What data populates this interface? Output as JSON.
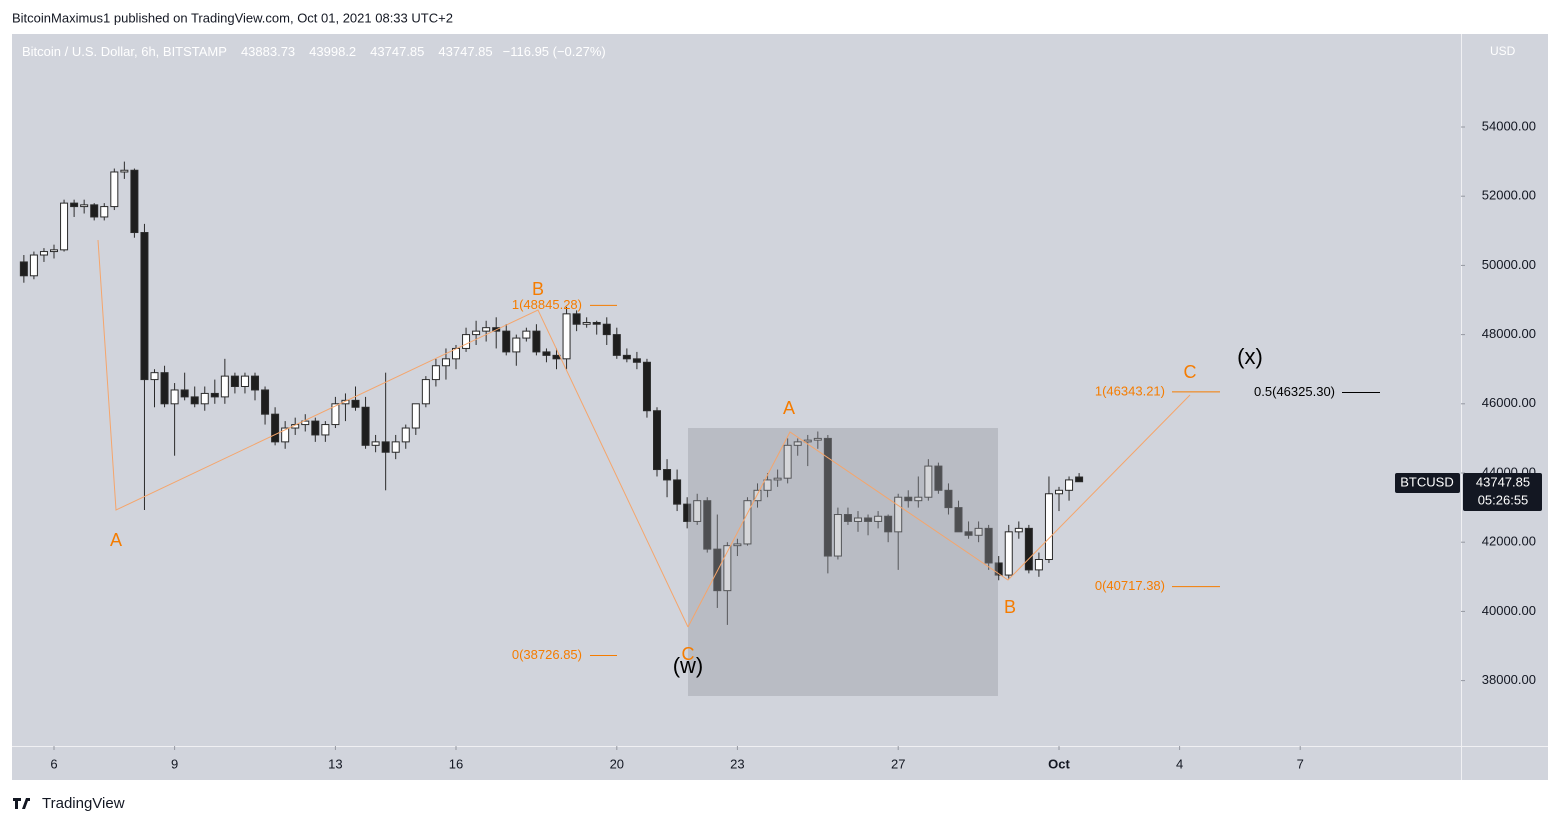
{
  "publisher": "BitcoinMaximus1 published on TradingView.com, Oct 01, 2021 08:33 UTC+2",
  "footer": "TradingView",
  "chart_data": {
    "type": "candlestick",
    "title": "Bitcoin / U.S. Dollar, 6h, BITSTAMP",
    "change": "−116.95 (−0.27%)",
    "symbol": "BTCUSD",
    "countdown": "05:26:55",
    "currency": "USD",
    "up_color": "#ffffff",
    "down_color": "#1e1e1e",
    "edge_color": "#2a2a2a",
    "x": [
      5.25,
      5.5,
      5.75,
      6,
      6.25,
      6.5,
      6.75,
      7,
      7.25,
      7.5,
      7.75,
      8,
      8.25,
      8.5,
      8.75,
      9,
      9.25,
      9.5,
      9.75,
      10,
      10.25,
      10.5,
      10.75,
      11,
      11.25,
      11.5,
      11.75,
      12,
      12.25,
      12.5,
      12.75,
      13,
      13.25,
      13.5,
      13.75,
      14,
      14.25,
      14.5,
      14.75,
      15,
      15.25,
      15.5,
      15.75,
      16,
      16.25,
      16.5,
      16.75,
      17,
      17.25,
      17.5,
      17.75,
      18,
      18.25,
      18.5,
      18.75,
      19,
      19.25,
      19.5,
      19.75,
      20,
      20.25,
      20.5,
      20.75,
      21,
      21.25,
      21.5,
      21.75,
      22,
      22.25,
      22.5,
      22.75,
      23,
      23.25,
      23.5,
      23.75,
      24,
      24.25,
      24.5,
      24.75,
      25,
      25.25,
      25.5,
      25.75,
      26,
      26.25,
      26.5,
      26.75,
      27,
      27.25,
      27.5,
      27.75,
      28,
      28.25,
      28.5,
      28.75,
      29,
      29.25,
      29.5,
      29.75,
      30,
      30.25,
      30.5,
      30.75,
      31,
      31.25,
      31.5
    ],
    "candles": [
      [
        50100,
        50300,
        49500,
        49700
      ],
      [
        49700,
        50400,
        49600,
        50300
      ],
      [
        50300,
        50500,
        50100,
        50400
      ],
      [
        50400,
        50600,
        50200,
        50450
      ],
      [
        50450,
        51900,
        50400,
        51800
      ],
      [
        51800,
        51900,
        51400,
        51700
      ],
      [
        51700,
        51900,
        51500,
        51750
      ],
      [
        51750,
        51800,
        51300,
        51400
      ],
      [
        51400,
        51800,
        51300,
        51700
      ],
      [
        51700,
        52800,
        51600,
        52700
      ],
      [
        52700,
        53000,
        52500,
        52750
      ],
      [
        52750,
        52800,
        50800,
        50950
      ],
      [
        50950,
        51200,
        42930,
        46700
      ],
      [
        46700,
        47000,
        45900,
        46900
      ],
      [
        46900,
        47100,
        45900,
        46000
      ],
      [
        46000,
        46600,
        44500,
        46400
      ],
      [
        46400,
        46900,
        46100,
        46200
      ],
      [
        46200,
        46500,
        45900,
        46000
      ],
      [
        46000,
        46500,
        45800,
        46300
      ],
      [
        46300,
        46700,
        46000,
        46200
      ],
      [
        46200,
        47300,
        46000,
        46800
      ],
      [
        46800,
        46900,
        46300,
        46500
      ],
      [
        46500,
        46900,
        46300,
        46800
      ],
      [
        46800,
        46900,
        46100,
        46400
      ],
      [
        46400,
        46500,
        45400,
        45700
      ],
      [
        45700,
        45900,
        44800,
        44900
      ],
      [
        44900,
        45500,
        44700,
        45300
      ],
      [
        45300,
        45600,
        45100,
        45400
      ],
      [
        45400,
        45700,
        45200,
        45500
      ],
      [
        45500,
        45600,
        44900,
        45100
      ],
      [
        45100,
        45500,
        44900,
        45400
      ],
      [
        45400,
        46200,
        45300,
        46000
      ],
      [
        46000,
        46300,
        45500,
        46100
      ],
      [
        46100,
        46500,
        45800,
        45900
      ],
      [
        45900,
        46200,
        44700,
        44800
      ],
      [
        44800,
        45100,
        44600,
        44900
      ],
      [
        44900,
        46900,
        43500,
        44600
      ],
      [
        44600,
        45100,
        44400,
        44900
      ],
      [
        44900,
        45400,
        44700,
        45300
      ],
      [
        45300,
        46000,
        45100,
        46000
      ],
      [
        46000,
        46800,
        45900,
        46700
      ],
      [
        46700,
        47300,
        46500,
        47100
      ],
      [
        47100,
        47600,
        46700,
        47300
      ],
      [
        47300,
        47700,
        47000,
        47600
      ],
      [
        47600,
        48200,
        47500,
        48000
      ],
      [
        48000,
        48400,
        47700,
        48100
      ],
      [
        48100,
        48400,
        47800,
        48200
      ],
      [
        48200,
        48500,
        47600,
        48100
      ],
      [
        48100,
        48300,
        47400,
        47500
      ],
      [
        47500,
        48000,
        47100,
        47900
      ],
      [
        47900,
        48200,
        47800,
        48100
      ],
      [
        48100,
        48300,
        47400,
        47500
      ],
      [
        47500,
        47600,
        47200,
        47400
      ],
      [
        47400,
        47600,
        47000,
        47300
      ],
      [
        47300,
        48800,
        47000,
        48600
      ],
      [
        48600,
        48700,
        48100,
        48300
      ],
      [
        48300,
        48500,
        48200,
        48350
      ],
      [
        48350,
        48400,
        48000,
        48300
      ],
      [
        48300,
        48500,
        47700,
        48000
      ],
      [
        48000,
        48200,
        47300,
        47400
      ],
      [
        47400,
        47600,
        47200,
        47300
      ],
      [
        47300,
        47500,
        47000,
        47200
      ],
      [
        47200,
        47300,
        45600,
        45800
      ],
      [
        45800,
        45900,
        43900,
        44100
      ],
      [
        44100,
        44400,
        43300,
        43800
      ],
      [
        43800,
        44100,
        42900,
        43100
      ],
      [
        43100,
        43300,
        42400,
        42600
      ],
      [
        42600,
        43400,
        42500,
        43200
      ],
      [
        43200,
        43300,
        41700,
        41800
      ],
      [
        41800,
        42800,
        40100,
        40600
      ],
      [
        40600,
        42000,
        39610,
        41900
      ],
      [
        41900,
        42100,
        41600,
        41950
      ],
      [
        41950,
        43300,
        41900,
        43200
      ],
      [
        43200,
        43700,
        43000,
        43500
      ],
      [
        43500,
        44000,
        43300,
        43800
      ],
      [
        43800,
        44100,
        43600,
        43850
      ],
      [
        43850,
        45000,
        43700,
        44800
      ],
      [
        44800,
        45000,
        44500,
        44900
      ],
      [
        44900,
        45100,
        44200,
        44950
      ],
      [
        44950,
        45200,
        44700,
        45000
      ],
      [
        45000,
        45100,
        41100,
        41600
      ],
      [
        41600,
        43000,
        41500,
        42800
      ],
      [
        42800,
        43000,
        42500,
        42600
      ],
      [
        42600,
        42900,
        42300,
        42700
      ],
      [
        42700,
        42800,
        42200,
        42600
      ],
      [
        42600,
        42900,
        42400,
        42750
      ],
      [
        42750,
        42800,
        42000,
        42300
      ],
      [
        42300,
        43400,
        41200,
        43300
      ],
      [
        43300,
        43500,
        43000,
        43200
      ],
      [
        43200,
        43900,
        43000,
        43300
      ],
      [
        43300,
        44400,
        43200,
        44200
      ],
      [
        44200,
        44300,
        43400,
        43500
      ],
      [
        43500,
        43700,
        42800,
        43000
      ],
      [
        43000,
        43200,
        42300,
        42300
      ],
      [
        42300,
        42600,
        42100,
        42200
      ],
      [
        42200,
        42600,
        42000,
        42400
      ],
      [
        42400,
        42500,
        41200,
        41400
      ],
      [
        41400,
        41600,
        40900,
        41050
      ],
      [
        41050,
        42500,
        40950,
        42300
      ],
      [
        42300,
        42600,
        42100,
        42400
      ],
      [
        42400,
        42500,
        41100,
        41200
      ],
      [
        41200,
        41700,
        41000,
        41500
      ],
      [
        41500,
        43900,
        41400,
        43400
      ],
      [
        43400,
        43600,
        42900,
        43500
      ],
      [
        43500,
        43900,
        43200,
        43800
      ],
      [
        43883.73,
        43998.2,
        43747.85,
        43747.85
      ]
    ],
    "xlim": [
      4.955,
      41.0
    ],
    "xticks": [
      6,
      9,
      13,
      16,
      20,
      23,
      27,
      {
        "value": 31,
        "label": "Oct"
      },
      {
        "value": 34,
        "label": "4"
      },
      {
        "value": 37,
        "label": "7"
      }
    ],
    "ylim": [
      36110,
      56659
    ],
    "yticks": [
      {
        "value": 38000,
        "label": "38000.00"
      },
      {
        "value": 40000,
        "label": "40000.00"
      },
      {
        "value": 42000,
        "label": "42000.00"
      },
      {
        "value": 44000,
        "label": "44000.00"
      },
      {
        "value": 46000,
        "label": "46000.00"
      },
      {
        "value": 48000,
        "label": "48000.00"
      },
      {
        "value": 50000,
        "label": "50000.00"
      },
      {
        "value": 52000,
        "label": "52000.00"
      },
      {
        "value": 54000,
        "label": "54000.00"
      }
    ],
    "fib_levels": [
      {
        "value": 48845.28,
        "label": "1(48845.28)",
        "color": "#f57c00"
      },
      {
        "value": 38726.85,
        "label": "0(38726.85)",
        "color": "#f57c00"
      },
      {
        "value": 46343.21,
        "label": "1(46343.21)",
        "color": "#f57c00"
      },
      {
        "value": 40717.38,
        "label": "0(40717.38)",
        "color": "#f57c00"
      },
      {
        "value": 46325.3,
        "label": "0.5(46325.30)",
        "color": "#000000"
      }
    ],
    "wave_labels": [
      {
        "text": "A",
        "color": "#f57c00"
      },
      {
        "text": "B",
        "color": "#f57c00"
      },
      {
        "text": "C",
        "color": "#f57c00"
      },
      {
        "text": "(w)",
        "color": "#000000"
      },
      {
        "text": "A",
        "color": "#f57c00"
      },
      {
        "text": "B",
        "color": "#f57c00"
      },
      {
        "text": "C",
        "color": "#f57c00"
      },
      {
        "text": "(x)",
        "color": "#000000"
      }
    ]
  }
}
